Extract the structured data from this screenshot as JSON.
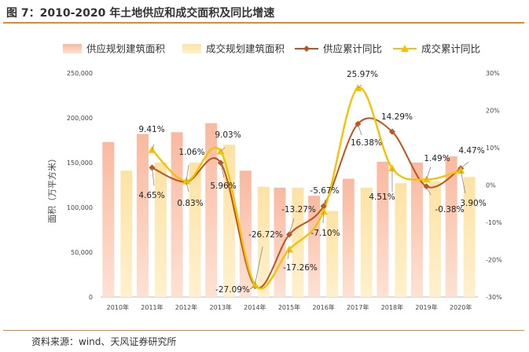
{
  "header": {
    "title": "图 7：2010-2020 年土地供应和成交面积及同比增速"
  },
  "footer": {
    "source": "资料来源：wind、天风证券研究所"
  },
  "colors": {
    "supply_bar": "#f9b9a0",
    "deal_bar": "#fde2a4",
    "supply_line": "#c0531a",
    "deal_line": "#f5c200",
    "accent": "#e08a2a"
  },
  "chart_data": {
    "type": "bar",
    "categories": [
      "2010年",
      "2011年",
      "2012年",
      "2013年",
      "2014年",
      "2015年",
      "2016年",
      "2017年",
      "2018年",
      "2019年",
      "2020年"
    ],
    "series": [
      {
        "name": "供应规划建筑面积",
        "kind": "bar",
        "axis": "left",
        "values": [
          173000,
          182000,
          184000,
          194000,
          141000,
          122000,
          113000,
          132000,
          151000,
          150000,
          157000
        ]
      },
      {
        "name": "成交规划建筑面积",
        "kind": "bar",
        "axis": "left",
        "values": [
          141000,
          150000,
          150000,
          170000,
          123000,
          122000,
          96000,
          122000,
          127000,
          129000,
          134000
        ]
      },
      {
        "name": "供应累计同比",
        "kind": "line",
        "axis": "right",
        "values": [
          null,
          4.65,
          0.83,
          5.96,
          -27.09,
          -13.27,
          -5.67,
          16.38,
          14.29,
          -0.38,
          4.47
        ]
      },
      {
        "name": "成交累计同比",
        "kind": "line",
        "axis": "right",
        "values": [
          null,
          9.41,
          1.06,
          9.03,
          -26.72,
          -17.26,
          -7.1,
          25.97,
          4.51,
          1.49,
          3.9
        ]
      }
    ],
    "labels": [
      {
        "text": "9.41%"
      },
      {
        "text": "4.65%"
      },
      {
        "text": "1.06%"
      },
      {
        "text": "0.83%"
      },
      {
        "text": "9.03%"
      },
      {
        "text": "5.96%"
      },
      {
        "text": "-26.72%"
      },
      {
        "text": "-27.09%"
      },
      {
        "text": "-13.27%"
      },
      {
        "text": "-17.26%"
      },
      {
        "text": "-5.67%"
      },
      {
        "text": "-7.10%"
      },
      {
        "text": "25.97%"
      },
      {
        "text": "16.38%"
      },
      {
        "text": "14.29%"
      },
      {
        "text": "4.51%"
      },
      {
        "text": "1.49%"
      },
      {
        "text": "-0.38%"
      },
      {
        "text": "4.47%"
      },
      {
        "text": "3.90%"
      }
    ],
    "ylabel": "面积（万平方米）",
    "ylim": [
      0,
      250000
    ],
    "yticks": [
      "0",
      "50,000",
      "100,000",
      "150,000",
      "200,000",
      "250,000"
    ],
    "y2lim": [
      -30,
      30
    ],
    "y2ticks": [
      "-30%",
      "-20%",
      "-10%",
      "0%",
      "10%",
      "20%",
      "30%"
    ],
    "legend": "top",
    "grid": false
  }
}
